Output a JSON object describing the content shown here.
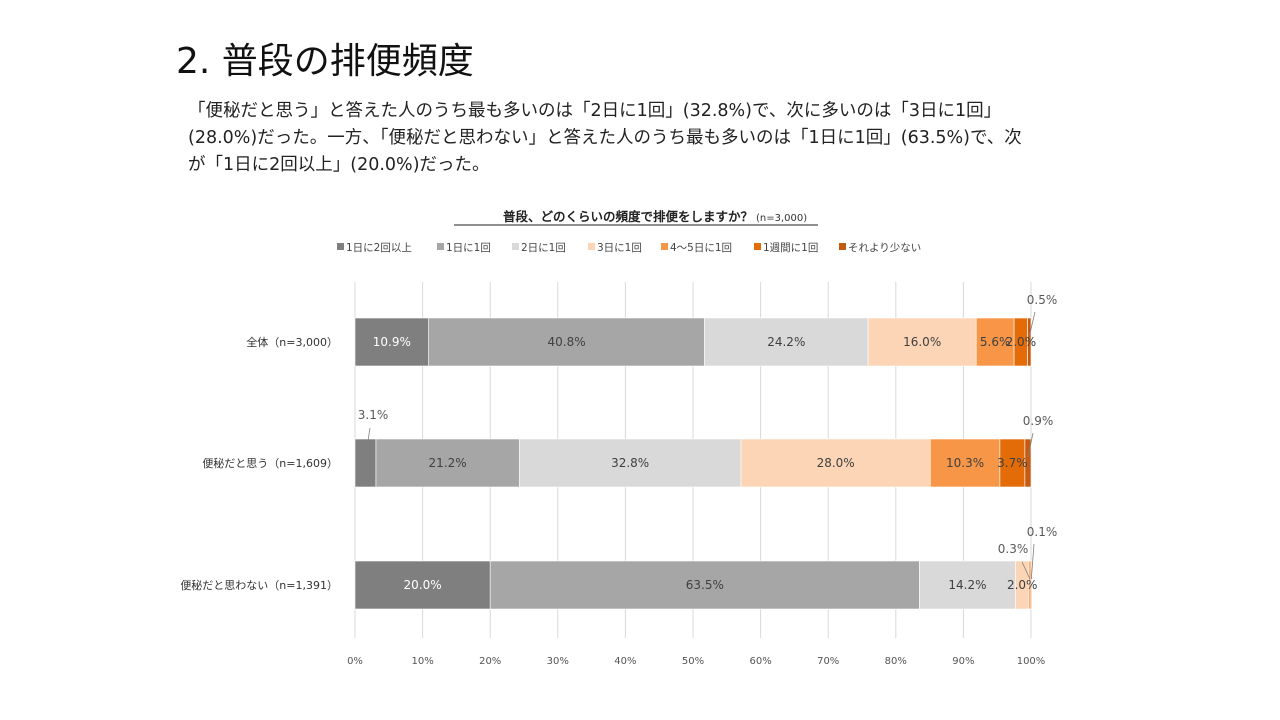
{
  "page": {
    "title": "2. 普段の排便頻度",
    "summary_lines": [
      "「便秘だと思う」と答えた人のうち最も多いのは「2日に1回」(32.8%)で、次に多いのは「3日に1回」",
      "(28.0%)だった。一方、「便秘だと思わない」と答えた人のうち最も多いのは「1日に1回」(63.5%)で、次",
      "が「1日に2回以上」(20.0%)だった。"
    ]
  },
  "chart_data": {
    "type": "bar",
    "orientation": "horizontal",
    "stacked": "percent",
    "title": "普段、どのくらいの頻度で排便をしますか？",
    "subtitle": "(n=3,000)",
    "categories": [
      "全体（n=3,000）",
      "便秘だと思う（n=1,609）",
      "便秘だと思わない（n=1,391）"
    ],
    "series": [
      {
        "name": "1日に2回以上",
        "color": "#7f7f7f",
        "label_color": "#ffffff",
        "values": [
          10.9,
          3.1,
          20.0
        ],
        "labels": [
          "10.9%",
          "3.1%",
          "20.0%"
        ]
      },
      {
        "name": "1日に1回",
        "color": "#a6a6a6",
        "label_color": "#404040",
        "values": [
          40.8,
          21.2,
          63.5
        ],
        "labels": [
          "40.8%",
          "21.2%",
          "63.5%"
        ]
      },
      {
        "name": "2日に1回",
        "color": "#d9d9d9",
        "label_color": "#404040",
        "values": [
          24.2,
          32.8,
          14.2
        ],
        "labels": [
          "24.2%",
          "32.8%",
          "14.2%"
        ]
      },
      {
        "name": "3日に1回",
        "color": "#fbd5b5",
        "label_color": "#404040",
        "values": [
          16.0,
          28.0,
          2.0
        ],
        "labels": [
          "16.0%",
          "28.0%",
          "2.0%"
        ]
      },
      {
        "name": "4〜5日に1回",
        "color": "#f79646",
        "label_color": "#404040",
        "values": [
          5.6,
          10.3,
          0.3
        ],
        "labels": [
          "5.6%",
          "10.3%",
          "0.3%"
        ]
      },
      {
        "name": "1週間に1回",
        "color": "#e36c09",
        "label_color": "#404040",
        "values": [
          2.0,
          3.7,
          0.1
        ],
        "labels": [
          "2.0%",
          "3.7%",
          "0.1%"
        ]
      },
      {
        "name": "それより少ない",
        "color": "#c55a11",
        "label_color": "#404040",
        "values": [
          0.5,
          0.9,
          0.0
        ],
        "labels": [
          "0.5%",
          "0.9%",
          ""
        ]
      }
    ],
    "xlim": [
      0,
      100
    ],
    "x_ticks": [
      "0%",
      "10%",
      "20%",
      "30%",
      "40%",
      "50%",
      "60%",
      "70%",
      "80%",
      "90%",
      "100%"
    ],
    "grid": true,
    "legend_position": "top"
  }
}
